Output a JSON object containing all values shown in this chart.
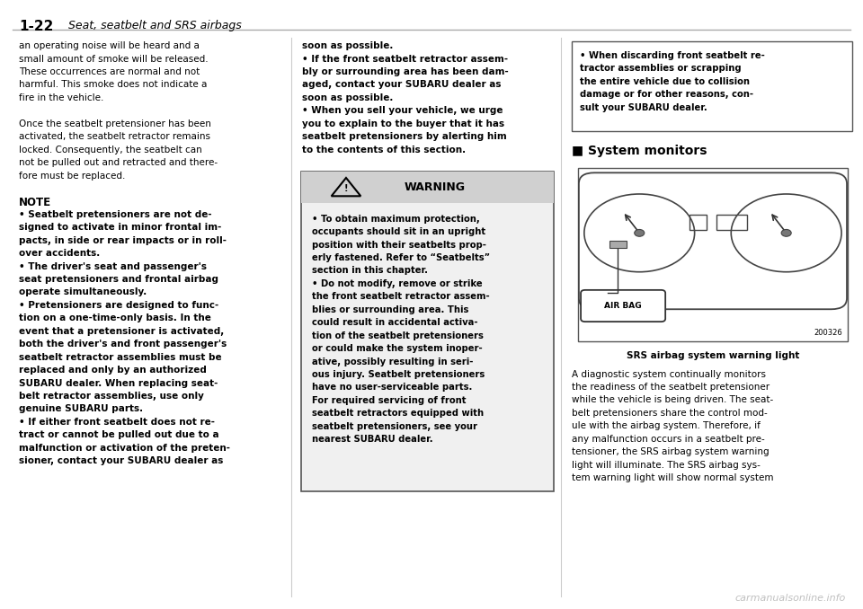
{
  "page_title_bold": "1-22",
  "page_title_italic": " Seat, seatbelt and SRS airbags",
  "bg_color": "#ffffff",
  "line_color": "#cccccc",
  "text_color": "#000000",
  "col1_text": [
    "an operating noise will be heard and a",
    "small amount of smoke will be released.",
    "These occurrences are normal and not",
    "harmful. This smoke does not indicate a",
    "fire in the vehicle.",
    "",
    "Once the seatbelt pretensioner has been",
    "activated, the seatbelt retractor remains",
    "locked. Consequently, the seatbelt can",
    "not be pulled out and retracted and there-",
    "fore must be replaced.",
    "",
    "NOTE",
    "• Seatbelt pretensioners are not de-",
    "signed to activate in minor frontal im-",
    "pacts, in side or rear impacts or in roll-",
    "over accidents.",
    "• The driver's seat and passenger's",
    "seat pretensioners and frontal airbag",
    "operate simultaneously.",
    "• Pretensioners are designed to func-",
    "tion on a one-time-only basis. In the",
    "event that a pretensioner is activated,",
    "both the driver's and front passenger's",
    "seatbelt retractor assemblies must be",
    "replaced and only by an authorized",
    "SUBARU dealer. When replacing seat-",
    "belt retractor assemblies, use only",
    "genuine SUBARU parts.",
    "• If either front seatbelt does not re-",
    "tract or cannot be pulled out due to a",
    "malfunction or activation of the preten-",
    "sioner, contact your SUBARU dealer as"
  ],
  "col2_text_top": [
    "soon as possible.",
    "• If the front seatbelt retractor assem-",
    "bly or surrounding area has been dam-",
    "aged, contact your SUBARU dealer as",
    "soon as possible.",
    "• When you sell your vehicle, we urge",
    "you to explain to the buyer that it has",
    "seatbelt pretensioners by alerting him",
    "to the contents of this section."
  ],
  "warning_title": "WARNING",
  "warning_text": [
    "• To obtain maximum protection,",
    "occupants should sit in an upright",
    "position with their seatbelts prop-",
    "erly fastened. Refer to “Seatbelts”",
    "section in this chapter.",
    "• Do not modify, remove or strike",
    "the front seatbelt retractor assem-",
    "blies or surrounding area. This",
    "could result in accidental activa-",
    "tion of the seatbelt pretensioners",
    "or could make the system inoper-",
    "ative, possibly resulting in seri-",
    "ous injury. Seatbelt pretensioners",
    "have no user-serviceable parts.",
    "For required servicing of front",
    "seatbelt retractors equipped with",
    "seatbelt pretensioners, see your",
    "nearest SUBARU dealer."
  ],
  "col3_bullet_text": [
    "• When discarding front seatbelt re-",
    "tractor assemblies or scrapping",
    "the entire vehicle due to collision",
    "damage or for other reasons, con-",
    "sult your SUBARU dealer."
  ],
  "system_monitors_title": "■ System monitors",
  "diagram_label": "AIR BAG",
  "diagram_number": "200326",
  "diagram_caption": "SRS airbag system warning light",
  "col3_bottom_text": [
    "A diagnostic system continually monitors",
    "the readiness of the seatbelt pretensioner",
    "while the vehicle is being driven. The seat-",
    "belt pretensioners share the control mod-",
    "ule with the airbag system. Therefore, if",
    "any malfunction occurs in a seatbelt pre-",
    "tensioner, the SRS airbag system warning",
    "light will illuminate. The SRS airbag sys-",
    "tem warning light will show normal system"
  ],
  "footer_text": "carmanualsonline.info",
  "watermark_color": "#c0c0c0"
}
